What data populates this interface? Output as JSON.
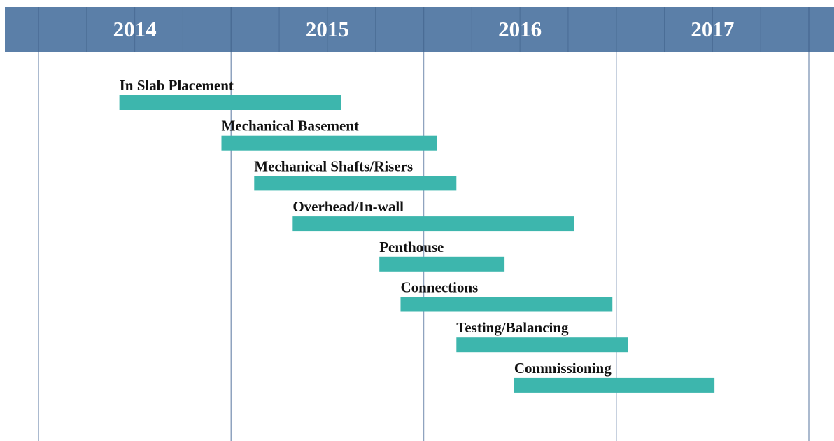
{
  "chart_data": {
    "type": "gantt",
    "periods": [
      "2014",
      "2015",
      "2016",
      "2017"
    ],
    "categories": [
      "In Slab Placement",
      "Mechanical Basement",
      "Mechanical Shafts/Risers",
      "Overhead/In-wall",
      "Penthouse",
      "Connections",
      "Testing/Balancing",
      "Commissioning"
    ],
    "start": [
      2014.42,
      2014.95,
      2015.12,
      2015.32,
      2015.77,
      2015.88,
      2016.17,
      2016.47
    ],
    "end": [
      2015.57,
      2016.07,
      2016.17,
      2016.78,
      2016.42,
      2016.98,
      2017.06,
      2017.51
    ],
    "color": "#3db6ad",
    "header_color": "#5b7fa8",
    "xlim": [
      2014,
      2018
    ],
    "xticks": [
      2014,
      2015,
      2016,
      2017,
      2018
    ],
    "grid": true
  }
}
